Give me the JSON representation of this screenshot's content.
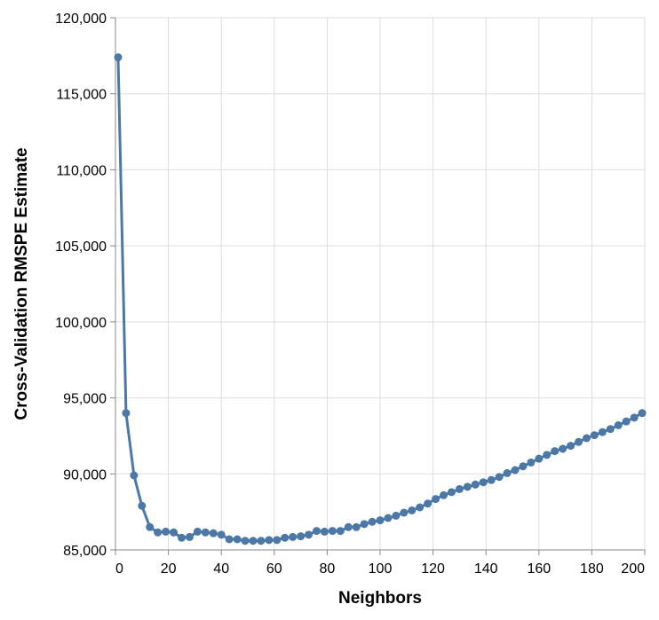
{
  "chart_data": {
    "type": "line",
    "x_label": "Neighbors",
    "y_label": "Cross-Validation RMSPE Estimate",
    "x": [
      1,
      4,
      7,
      10,
      13,
      16,
      19,
      22,
      25,
      28,
      31,
      34,
      37,
      40,
      43,
      46,
      49,
      52,
      55,
      58,
      61,
      64,
      67,
      70,
      73,
      76,
      79,
      82,
      85,
      88,
      91,
      94,
      97,
      100,
      103,
      106,
      109,
      112,
      115,
      118,
      121,
      124,
      127,
      130,
      133,
      136,
      139,
      142,
      145,
      148,
      151,
      154,
      157,
      160,
      163,
      166,
      169,
      172,
      175,
      178,
      181,
      184,
      187,
      190,
      193,
      196,
      199
    ],
    "series": [
      {
        "name": "RMSPE",
        "color": "#4c78a8",
        "values": [
          117400,
          94000,
          89900,
          87900,
          86500,
          86150,
          86200,
          86150,
          85800,
          85850,
          86200,
          86150,
          86100,
          86000,
          85700,
          85700,
          85600,
          85600,
          85600,
          85650,
          85650,
          85800,
          85850,
          85900,
          86000,
          86250,
          86200,
          86250,
          86250,
          86500,
          86500,
          86700,
          86850,
          86950,
          87100,
          87250,
          87450,
          87600,
          87800,
          88050,
          88350,
          88600,
          88800,
          89000,
          89150,
          89300,
          89450,
          89600,
          89800,
          90050,
          90250,
          90500,
          90750,
          91000,
          91250,
          91500,
          91650,
          91850,
          92100,
          92350,
          92550,
          92750,
          92950,
          93200,
          93450,
          93700,
          94000
        ]
      }
    ],
    "xlim": [
      0,
      200
    ],
    "xticks": [
      0,
      20,
      40,
      60,
      80,
      100,
      120,
      140,
      160,
      180,
      200
    ],
    "ylim": [
      85000,
      120000
    ],
    "yticks": [
      {
        "value": 85000,
        "label": "85,000"
      },
      {
        "value": 90000,
        "label": "90,000"
      },
      {
        "value": 95000,
        "label": "95,000"
      },
      {
        "value": 100000,
        "label": "100,000"
      },
      {
        "value": 105000,
        "label": "105,000"
      },
      {
        "value": 110000,
        "label": "110,000"
      },
      {
        "value": 115000,
        "label": "115,000"
      },
      {
        "value": 120000,
        "label": "120,000"
      }
    ],
    "grid": true
  }
}
